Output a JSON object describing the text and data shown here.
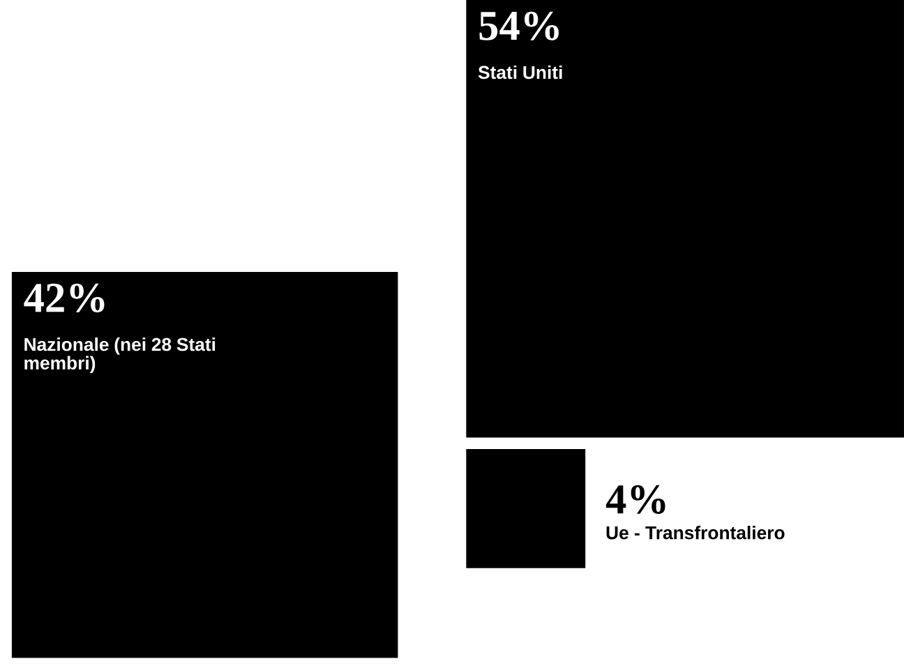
{
  "chart_data": {
    "type": "other",
    "categories": [
      "Stati Uniti",
      "Nazionale (nei 28 Stati membri)",
      "Ue - Transfrontaliero"
    ],
    "values": [
      54,
      42,
      4
    ],
    "value_labels": [
      "54%",
      "42%",
      "4%"
    ],
    "colors": [
      "#000000",
      "#000000",
      "#000000"
    ]
  }
}
